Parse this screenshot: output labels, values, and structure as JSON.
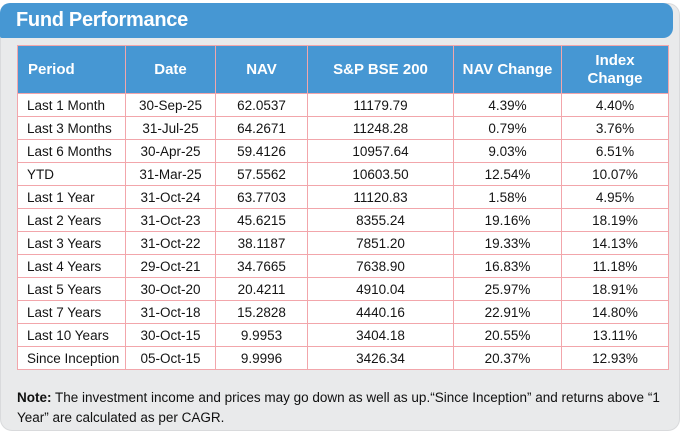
{
  "title": "Fund Performance",
  "colors": {
    "accent_blue": "#4697d3",
    "table_border_pink": "#f2a6ab",
    "card_background_gray": "#e9eaeb",
    "header_text": "#ffffff",
    "body_text": "#141414"
  },
  "table": {
    "columns": [
      "Period",
      "Date",
      "NAV",
      "S&P BSE 200",
      "NAV Change",
      "Index Change"
    ],
    "column_keys": [
      "period",
      "date",
      "nav",
      "sp-bse-200",
      "nav-change",
      "index-change"
    ],
    "rows": [
      [
        "Last 1 Month",
        "30-Sep-25",
        "62.0537",
        "11179.79",
        "4.39%",
        "4.40%"
      ],
      [
        "Last 3 Months",
        "31-Jul-25",
        "64.2671",
        "11248.28",
        "0.79%",
        "3.76%"
      ],
      [
        "Last 6 Months",
        "30-Apr-25",
        "59.4126",
        "10957.64",
        "9.03%",
        "6.51%"
      ],
      [
        "YTD",
        "31-Mar-25",
        "57.5562",
        "10603.50",
        "12.54%",
        "10.07%"
      ],
      [
        "Last 1 Year",
        "31-Oct-24",
        "63.7703",
        "11120.83",
        "1.58%",
        "4.95%"
      ],
      [
        "Last 2 Years",
        "31-Oct-23",
        "45.6215",
        "8355.24",
        "19.16%",
        "18.19%"
      ],
      [
        "Last 3 Years",
        "31-Oct-22",
        "38.1187",
        "7851.20",
        "19.33%",
        "14.13%"
      ],
      [
        "Last 4 Years",
        "29-Oct-21",
        "34.7665",
        "7638.90",
        "16.83%",
        "11.18%"
      ],
      [
        "Last 5 Years",
        "30-Oct-20",
        "20.4211",
        "4910.04",
        "25.97%",
        "18.91%"
      ],
      [
        "Last 7 Years",
        "31-Oct-18",
        "15.2828",
        "4440.16",
        "22.91%",
        "14.80%"
      ],
      [
        "Last 10 Years",
        "30-Oct-15",
        "9.9953",
        "3404.18",
        "20.55%",
        "13.11%"
      ],
      [
        "Since Inception",
        "05-Oct-15",
        "9.9996",
        "3426.34",
        "20.37%",
        "12.93%"
      ]
    ]
  },
  "note": {
    "label": "Note:",
    "text": " The investment income and prices may go down as well as up.“Since Inception” and returns above “1 Year” are calculated as per CAGR."
  }
}
